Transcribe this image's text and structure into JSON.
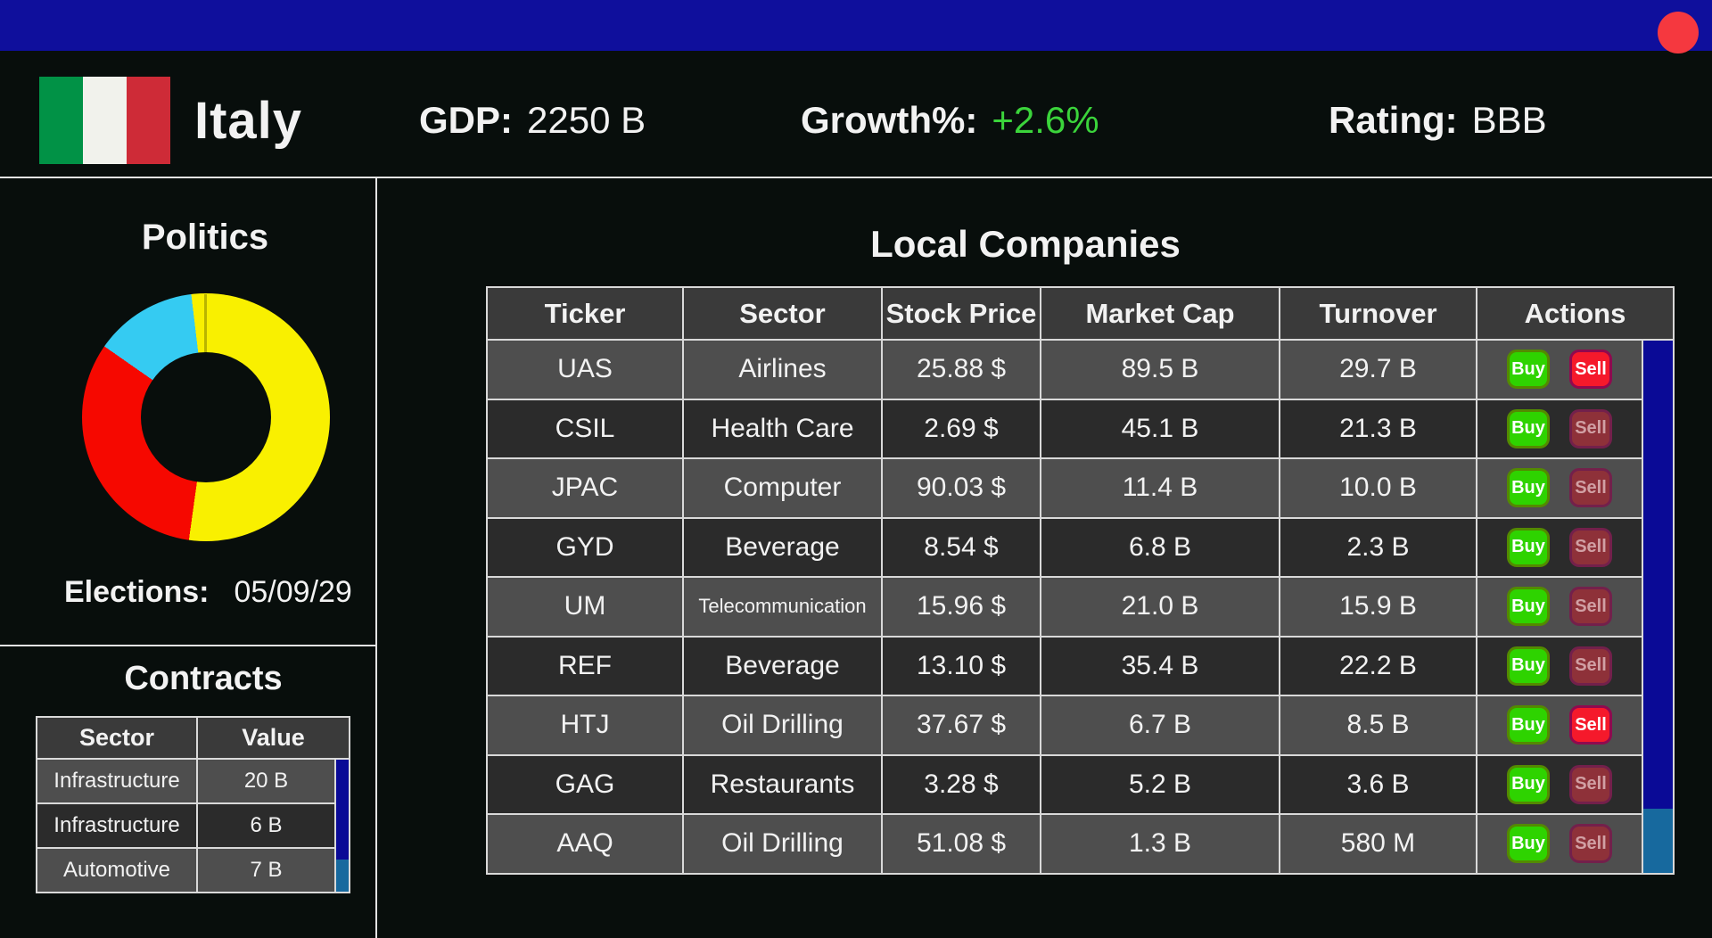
{
  "chart_data": {
    "type": "pie",
    "title": "Politics",
    "donut": true,
    "legend": "none",
    "segments": [
      {
        "label": "yellow-party",
        "percent": 52.2,
        "color": "#f9f000"
      },
      {
        "label": "red-party",
        "percent": 32.5,
        "color": "#f60800"
      },
      {
        "label": "cyan-party",
        "percent": 13.4,
        "color": "#35cbf2"
      },
      {
        "label": "yellow-party-sliver",
        "percent": 1.9,
        "color": "#f9f000"
      }
    ]
  },
  "colors": {
    "top_bar_blue": "#0f0f9c",
    "alert_red": "#f5383f",
    "growth_green": "#3bd43b",
    "buy_green": "#2ed300",
    "sell_red": "#f5192b",
    "sell_disabled": "#8e3139",
    "scroll_track_blue": "#0a0a96",
    "scroll_thumb_blue": "#17699e"
  },
  "country_header": {
    "name": "Italy",
    "flag_colors": [
      "#019246",
      "#f1f2ec",
      "#ce2b37"
    ],
    "gdp_label": "GDP:",
    "gdp_value": "2250 B",
    "growth_label": "Growth%:",
    "growth_value": "+2.6%",
    "rating_label": "Rating:",
    "rating_value": "BBB"
  },
  "politics": {
    "title": "Politics",
    "elections_label": "Elections:",
    "elections_date": "05/09/29"
  },
  "contracts": {
    "title": "Contracts",
    "columns": [
      "Sector",
      "Value"
    ],
    "rows": [
      {
        "sector": "Infrastructure",
        "value": "20 B"
      },
      {
        "sector": "Infrastructure",
        "value": "6 B"
      },
      {
        "sector": "Automotive",
        "value": "7 B"
      }
    ]
  },
  "companies": {
    "title": "Local Companies",
    "columns": [
      "Ticker",
      "Sector",
      "Stock Price",
      "Market Cap",
      "Turnover",
      "Actions"
    ],
    "buy_label": "Buy",
    "sell_label": "Sell",
    "rows": [
      {
        "ticker": "UAS",
        "sector": "Airlines",
        "stock_price": "25.88 $",
        "market_cap": "89.5 B",
        "turnover": "29.7 B",
        "sell_enabled": true
      },
      {
        "ticker": "CSIL",
        "sector": "Health Care",
        "stock_price": "2.69 $",
        "market_cap": "45.1 B",
        "turnover": "21.3 B",
        "sell_enabled": false
      },
      {
        "ticker": "JPAC",
        "sector": "Computer",
        "stock_price": "90.03 $",
        "market_cap": "11.4 B",
        "turnover": "10.0 B",
        "sell_enabled": false
      },
      {
        "ticker": "GYD",
        "sector": "Beverage",
        "stock_price": "8.54 $",
        "market_cap": "6.8 B",
        "turnover": "2.3 B",
        "sell_enabled": false
      },
      {
        "ticker": "UM",
        "sector": "Telecommunication",
        "stock_price": "15.96 $",
        "market_cap": "21.0 B",
        "turnover": "15.9 B",
        "sell_enabled": false
      },
      {
        "ticker": "REF",
        "sector": "Beverage",
        "stock_price": "13.10 $",
        "market_cap": "35.4 B",
        "turnover": "22.2 B",
        "sell_enabled": false
      },
      {
        "ticker": "HTJ",
        "sector": "Oil Drilling",
        "stock_price": "37.67 $",
        "market_cap": "6.7 B",
        "turnover": "8.5 B",
        "sell_enabled": true
      },
      {
        "ticker": "GAG",
        "sector": "Restaurants",
        "stock_price": "3.28 $",
        "market_cap": "5.2 B",
        "turnover": "3.6 B",
        "sell_enabled": false
      },
      {
        "ticker": "AAQ",
        "sector": "Oil Drilling",
        "stock_price": "51.08 $",
        "market_cap": "1.3 B",
        "turnover": "580 M",
        "sell_enabled": false
      }
    ]
  }
}
